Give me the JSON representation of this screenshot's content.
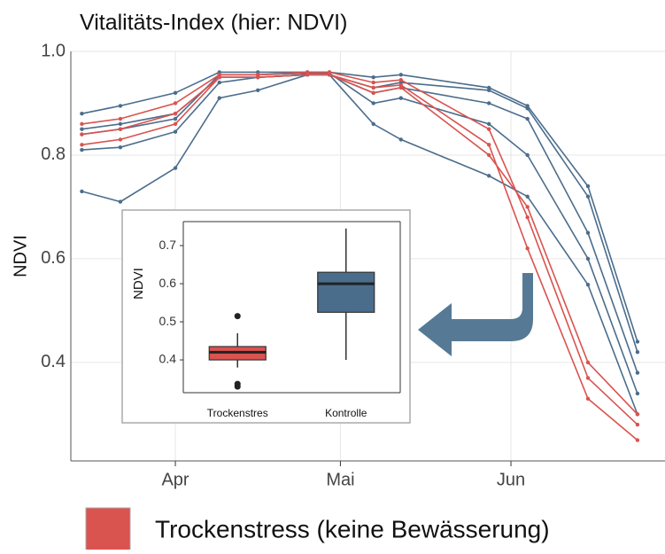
{
  "chart_data": [
    {
      "type": "line",
      "title": "Vitalitäts-Index (hier: NDVI)",
      "ylabel": "NDVI",
      "x": [
        74,
        81,
        91,
        99,
        106,
        115,
        119,
        127,
        132,
        148,
        155,
        166,
        175
      ],
      "xlim": [
        72,
        180
      ],
      "xticks": [
        {
          "value": 91,
          "label": "Apr"
        },
        {
          "value": 121,
          "label": "Mai"
        },
        {
          "value": 152,
          "label": "Jun"
        }
      ],
      "ylim": [
        0.21,
        1.0
      ],
      "yticks": [
        0.4,
        0.6,
        0.8,
        {
          "value": 1.0,
          "label": "1.0"
        }
      ],
      "grid": true,
      "series": [
        {
          "name": "Trockenstress (keine Bewässerung)",
          "color": "#d9534f",
          "lines": [
            [
              0.82,
              0.83,
              0.86,
              0.95,
              0.95,
              0.955,
              0.955,
              0.93,
              0.935,
              0.82,
              0.62,
              0.33,
              0.25
            ],
            [
              0.86,
              0.87,
              0.9,
              0.955,
              0.955,
              0.96,
              0.96,
              0.94,
              0.945,
              0.85,
              0.68,
              0.37,
              0.28
            ],
            [
              0.84,
              0.85,
              0.88,
              0.95,
              0.95,
              0.955,
              0.955,
              0.92,
              0.93,
              0.8,
              0.7,
              0.4,
              0.3
            ]
          ]
        },
        {
          "color": "#4a6d8c",
          "lines": [
            [
              0.85,
              0.86,
              0.88,
              0.95,
              0.95,
              0.955,
              0.955,
              0.92,
              0.93,
              0.9,
              0.87,
              0.65,
              0.38
            ],
            [
              0.73,
              0.71,
              0.775,
              0.91,
              0.925,
              0.955,
              0.955,
              0.93,
              0.94,
              0.925,
              0.89,
              0.72,
              0.42
            ],
            [
              0.88,
              0.895,
              0.92,
              0.96,
              0.96,
              0.96,
              0.96,
              0.95,
              0.955,
              0.93,
              0.895,
              0.74,
              0.44
            ],
            [
              0.81,
              0.815,
              0.845,
              0.94,
              0.95,
              0.955,
              0.955,
              0.86,
              0.83,
              0.76,
              0.72,
              0.55,
              0.3
            ],
            [
              0.84,
              0.85,
              0.87,
              0.955,
              0.955,
              0.958,
              0.958,
              0.9,
              0.91,
              0.86,
              0.8,
              0.6,
              0.34
            ]
          ]
        }
      ]
    },
    {
      "type": "box",
      "ylabel": "NDVI",
      "categories": [
        "Trockenstres",
        "Kontrolle"
      ],
      "ylim": [
        0.314,
        0.763
      ],
      "yticks": [
        0.4,
        0.5,
        0.6,
        0.7
      ],
      "boxes": [
        {
          "color": "#d9534f",
          "whisker_low": 0.38,
          "q1": 0.4,
          "median": 0.42,
          "q3": 0.435,
          "whisker_high": 0.47,
          "outliers": [
            0.33,
            0.337,
            0.515
          ]
        },
        {
          "color": "#4a6d8c",
          "whisker_low": 0.4,
          "q1": 0.525,
          "median": 0.6,
          "q3": 0.63,
          "whisker_high": 0.745,
          "outliers": []
        }
      ]
    }
  ]
}
